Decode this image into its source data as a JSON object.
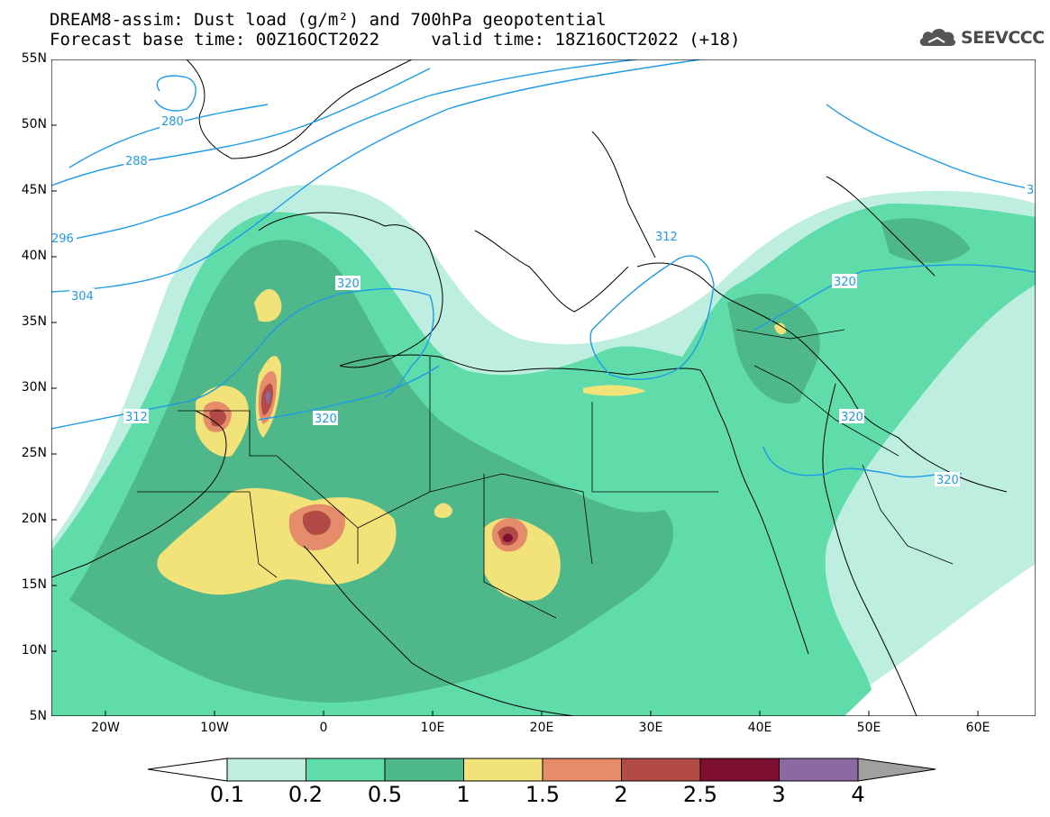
{
  "title": {
    "line1": "DREAM8-assim: Dust load (g/m²) and 700hPa geopotential",
    "line2": "Forecast base time: 00Z16OCT2022     valid time: 18Z16OCT2022 (+18)"
  },
  "logo": {
    "text": "SEEVCCC",
    "icon": "cloud-icon"
  },
  "map": {
    "lat_labels": [
      "55N",
      "50N",
      "45N",
      "40N",
      "35N",
      "30N",
      "25N",
      "20N",
      "15N",
      "10N",
      "5N"
    ],
    "lon_labels": [
      "20W",
      "10W",
      "0",
      "10E",
      "20E",
      "30E",
      "40E",
      "50E",
      "60E"
    ],
    "contour_labels": [
      "280",
      "288",
      "296",
      "304",
      "312",
      "320",
      "312",
      "320",
      "320",
      "320",
      "320",
      "3"
    ],
    "colors": {
      "c0": "#bdeee0",
      "c1": "#5fdcaa",
      "c2": "#4fb88a",
      "c3": "#f2e27a",
      "c4": "#e58c6a",
      "c5": "#b24a45",
      "c6": "#7d1030",
      "c7": "#8a6aa0",
      "c8": "#a0a0a0",
      "contour": "#1e9be8",
      "border": "#000000"
    }
  },
  "colorbar": {
    "labels": [
      "0.1",
      "0.2",
      "0.5",
      "1",
      "1.5",
      "2",
      "2.5",
      "3",
      "4"
    ],
    "colors": [
      "#bdeee0",
      "#5fdcaa",
      "#4fb88a",
      "#f2e27a",
      "#e58c6a",
      "#b24a45",
      "#7d1030",
      "#8a6aa0"
    ],
    "over_color": "#a0a0a0",
    "under_color": "#ffffff"
  }
}
